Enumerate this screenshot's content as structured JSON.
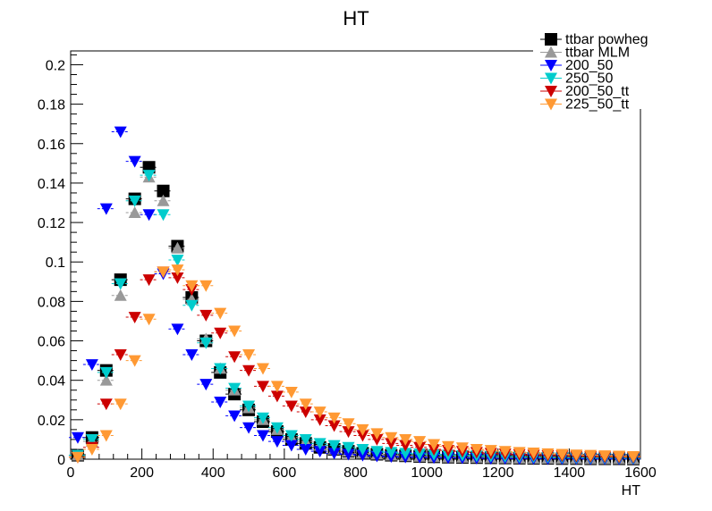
{
  "chart_data": {
    "type": "scatter",
    "title": "HT",
    "xlabel": "HT",
    "ylabel": "",
    "xlim": [
      0,
      1600
    ],
    "ylim": [
      0,
      0.207
    ],
    "x_ticks": [
      "0",
      "200",
      "400",
      "600",
      "800",
      "1000",
      "1200",
      "1400",
      "1600"
    ],
    "y_ticks": [
      "0",
      "0.02",
      "0.04",
      "0.06",
      "0.08",
      "0.1",
      "0.12",
      "0.14",
      "0.16",
      "0.18",
      "0.2"
    ],
    "legend_position": "top-right",
    "x": [
      20,
      60,
      100,
      140,
      180,
      220,
      260,
      300,
      340,
      380,
      420,
      460,
      500,
      540,
      580,
      620,
      660,
      700,
      740,
      780,
      820,
      860,
      900,
      940,
      980,
      1020,
      1060,
      1100,
      1140,
      1180,
      1220,
      1260,
      1300,
      1340,
      1380,
      1420,
      1460,
      1500,
      1540,
      1580
    ],
    "series": [
      {
        "name": "ttbar powheg",
        "marker": "square",
        "color": "#000000",
        "values": [
          0.002,
          0.011,
          0.045,
          0.091,
          0.132,
          0.148,
          0.136,
          0.108,
          0.082,
          0.06,
          0.044,
          0.033,
          0.025,
          0.019,
          0.014,
          0.01,
          0.008,
          0.006,
          0.005,
          0.004,
          0.003,
          0.0025,
          0.002,
          0.0017,
          0.0014,
          0.0012,
          0.001,
          0.0009,
          0.0008,
          0.0007,
          0.0006,
          0.0005,
          0.0004,
          0.0004,
          0.0003,
          0.0003,
          0.0002,
          0.0002,
          0.0002,
          0.0001
        ]
      },
      {
        "name": "ttbar MLM",
        "marker": "triangle-up",
        "color": "#999999",
        "values": [
          0.002,
          0.009,
          0.04,
          0.083,
          0.125,
          0.143,
          0.131,
          0.107,
          0.081,
          0.061,
          0.046,
          0.035,
          0.026,
          0.02,
          0.015,
          0.011,
          0.009,
          0.007,
          0.005,
          0.004,
          0.003,
          0.0025,
          0.002,
          0.0017,
          0.0014,
          0.0012,
          0.001,
          0.0009,
          0.0008,
          0.0007,
          0.0006,
          0.0005,
          0.0004,
          0.0004,
          0.0003,
          0.0003,
          0.0002,
          0.0002,
          0.0002,
          0.0001
        ]
      },
      {
        "name": "200_50",
        "marker": "triangle-down",
        "color": "#0000ff",
        "values": [
          0.011,
          0.048,
          0.127,
          0.166,
          0.151,
          0.124,
          0.094,
          0.066,
          0.053,
          0.038,
          0.029,
          0.022,
          0.016,
          0.012,
          0.009,
          0.007,
          0.005,
          0.004,
          0.003,
          0.0025,
          0.002,
          0.0016,
          0.0013,
          0.0011,
          0.001,
          0.0008,
          0.0007,
          0.0006,
          0.0005,
          0.0004,
          0.0004,
          0.0003,
          0.0003,
          0.0002,
          0.0002,
          0.0002,
          0.0001,
          0.0001,
          0.0001,
          0.0001
        ]
      },
      {
        "name": "250_50",
        "marker": "triangle-down",
        "color": "#00cccc",
        "values": [
          0.002,
          0.01,
          0.044,
          0.089,
          0.131,
          0.144,
          0.124,
          0.101,
          0.078,
          0.059,
          0.046,
          0.036,
          0.027,
          0.021,
          0.016,
          0.012,
          0.01,
          0.008,
          0.007,
          0.006,
          0.005,
          0.004,
          0.0035,
          0.003,
          0.0027,
          0.0024,
          0.0021,
          0.0019,
          0.0017,
          0.0015,
          0.0013,
          0.0012,
          0.0011,
          0.001,
          0.0009,
          0.0008,
          0.0007,
          0.0006,
          0.0006,
          0.0005
        ]
      },
      {
        "name": "200_50_tt",
        "marker": "triangle-down",
        "color": "#cc0000",
        "values": [
          0.001,
          0.006,
          0.028,
          0.053,
          0.072,
          0.091,
          0.095,
          0.092,
          0.086,
          0.073,
          0.064,
          0.052,
          0.045,
          0.037,
          0.032,
          0.027,
          0.024,
          0.02,
          0.017,
          0.014,
          0.012,
          0.01,
          0.008,
          0.007,
          0.006,
          0.005,
          0.0045,
          0.004,
          0.0035,
          0.003,
          0.0027,
          0.0024,
          0.0021,
          0.0019,
          0.0017,
          0.0015,
          0.0013,
          0.0012,
          0.0011,
          0.001
        ]
      },
      {
        "name": "225_50_tt",
        "marker": "triangle-down",
        "color": "#ff9933",
        "values": [
          0.001,
          0.005,
          0.012,
          0.028,
          0.05,
          0.071,
          0.095,
          0.096,
          0.088,
          0.088,
          0.074,
          0.065,
          0.053,
          0.046,
          0.037,
          0.034,
          0.028,
          0.024,
          0.021,
          0.018,
          0.015,
          0.013,
          0.011,
          0.01,
          0.009,
          0.0075,
          0.0065,
          0.0058,
          0.005,
          0.0045,
          0.004,
          0.0035,
          0.0032,
          0.0028,
          0.0025,
          0.0022,
          0.002,
          0.0018,
          0.0016,
          0.0014
        ]
      }
    ]
  }
}
